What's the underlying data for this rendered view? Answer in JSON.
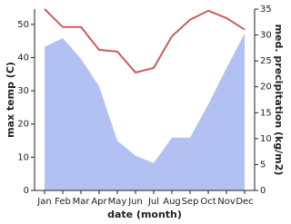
{
  "chart_data": {
    "type": "line_area",
    "x_label": "date (month)",
    "y_label": "max temp (C)",
    "y2_label": "med. precipitation (kg/m2)",
    "categories": [
      "Jan",
      "Feb",
      "Mar",
      "Apr",
      "May",
      "Jun",
      "Jul",
      "Aug",
      "Sep",
      "Oct",
      "Nov",
      "Dec"
    ],
    "series": [
      {
        "name": "max temp",
        "kind": "line",
        "color": "#cd5c5c",
        "axis": "y",
        "values": [
          54.6,
          49.2,
          49.2,
          42.3,
          41.8,
          35.5,
          36.9,
          46.4,
          51.4,
          54.1,
          51.9,
          48.4
        ]
      },
      {
        "name": "precipitation",
        "kind": "area",
        "color": "#b3c1f2",
        "axis": "y2",
        "values": [
          27.7,
          29.4,
          25.4,
          20.1,
          9.6,
          6.7,
          5.3,
          10.2,
          10.2,
          16.6,
          23.6,
          30.3
        ]
      }
    ],
    "ylim": [
      0,
      54.6
    ],
    "yticks": [
      0,
      10,
      20,
      30,
      40,
      50
    ],
    "y2lim": [
      0,
      35
    ],
    "y2ticks": [
      0,
      5,
      10,
      15,
      20,
      25,
      30,
      35
    ]
  }
}
